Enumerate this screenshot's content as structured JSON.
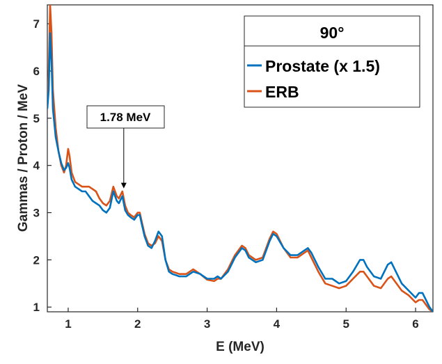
{
  "chart_data": {
    "type": "line",
    "xlabel": "E (MeV)",
    "ylabel": "Gammas / Proton / MeV",
    "xlim": [
      0.7,
      6.25
    ],
    "ylim": [
      0.9,
      7.4
    ],
    "xticks": [
      1,
      2,
      3,
      4,
      5,
      6
    ],
    "yticks": [
      1,
      2,
      3,
      4,
      5,
      6,
      7
    ],
    "grid": false,
    "legend": {
      "title": "90°",
      "placement": "top-right"
    },
    "annotation": {
      "text": "1.78 MeV",
      "x": 1.8,
      "y": 3.5
    },
    "series": [
      {
        "name": "Prostate (x 1.5)",
        "color": "#0072BD",
        "points": [
          [
            0.7,
            5.2
          ],
          [
            0.72,
            5.6
          ],
          [
            0.74,
            6.8
          ],
          [
            0.76,
            6.2
          ],
          [
            0.78,
            5.2
          ],
          [
            0.82,
            4.6
          ],
          [
            0.86,
            4.3
          ],
          [
            0.9,
            4.05
          ],
          [
            0.94,
            3.9
          ],
          [
            0.97,
            3.95
          ],
          [
            1.0,
            4.05
          ],
          [
            1.02,
            3.95
          ],
          [
            1.05,
            3.7
          ],
          [
            1.1,
            3.55
          ],
          [
            1.15,
            3.5
          ],
          [
            1.2,
            3.45
          ],
          [
            1.25,
            3.45
          ],
          [
            1.3,
            3.35
          ],
          [
            1.35,
            3.25
          ],
          [
            1.4,
            3.2
          ],
          [
            1.45,
            3.15
          ],
          [
            1.5,
            3.05
          ],
          [
            1.55,
            3.0
          ],
          [
            1.6,
            3.1
          ],
          [
            1.65,
            3.45
          ],
          [
            1.7,
            3.25
          ],
          [
            1.73,
            3.2
          ],
          [
            1.78,
            3.35
          ],
          [
            1.82,
            3.05
          ],
          [
            1.86,
            2.95
          ],
          [
            1.9,
            2.9
          ],
          [
            1.95,
            2.85
          ],
          [
            2.0,
            2.95
          ],
          [
            2.03,
            2.95
          ],
          [
            2.06,
            2.75
          ],
          [
            2.1,
            2.5
          ],
          [
            2.15,
            2.3
          ],
          [
            2.2,
            2.25
          ],
          [
            2.25,
            2.4
          ],
          [
            2.3,
            2.6
          ],
          [
            2.35,
            2.5
          ],
          [
            2.4,
            2.0
          ],
          [
            2.45,
            1.75
          ],
          [
            2.5,
            1.7
          ],
          [
            2.6,
            1.65
          ],
          [
            2.7,
            1.65
          ],
          [
            2.8,
            1.75
          ],
          [
            2.9,
            1.7
          ],
          [
            3.0,
            1.6
          ],
          [
            3.1,
            1.6
          ],
          [
            3.15,
            1.65
          ],
          [
            3.2,
            1.6
          ],
          [
            3.3,
            1.75
          ],
          [
            3.4,
            2.05
          ],
          [
            3.5,
            2.25
          ],
          [
            3.55,
            2.2
          ],
          [
            3.6,
            2.05
          ],
          [
            3.7,
            1.95
          ],
          [
            3.8,
            2.0
          ],
          [
            3.9,
            2.4
          ],
          [
            3.95,
            2.55
          ],
          [
            4.0,
            2.5
          ],
          [
            4.1,
            2.25
          ],
          [
            4.2,
            2.1
          ],
          [
            4.3,
            2.1
          ],
          [
            4.4,
            2.2
          ],
          [
            4.45,
            2.25
          ],
          [
            4.5,
            2.15
          ],
          [
            4.6,
            1.85
          ],
          [
            4.7,
            1.6
          ],
          [
            4.8,
            1.6
          ],
          [
            4.9,
            1.5
          ],
          [
            5.0,
            1.55
          ],
          [
            5.1,
            1.75
          ],
          [
            5.2,
            2.0
          ],
          [
            5.25,
            2.0
          ],
          [
            5.3,
            1.85
          ],
          [
            5.4,
            1.65
          ],
          [
            5.5,
            1.6
          ],
          [
            5.6,
            1.9
          ],
          [
            5.65,
            1.95
          ],
          [
            5.7,
            1.8
          ],
          [
            5.8,
            1.5
          ],
          [
            5.9,
            1.35
          ],
          [
            6.0,
            1.2
          ],
          [
            6.05,
            1.3
          ],
          [
            6.1,
            1.3
          ],
          [
            6.15,
            1.15
          ],
          [
            6.2,
            1.0
          ],
          [
            6.25,
            0.9
          ]
        ]
      },
      {
        "name": "ERB",
        "color": "#D95319",
        "points": [
          [
            0.7,
            5.3
          ],
          [
            0.72,
            6.0
          ],
          [
            0.74,
            7.4
          ],
          [
            0.76,
            6.8
          ],
          [
            0.78,
            5.6
          ],
          [
            0.82,
            4.8
          ],
          [
            0.86,
            4.3
          ],
          [
            0.9,
            4.0
          ],
          [
            0.94,
            3.85
          ],
          [
            0.97,
            4.0
          ],
          [
            1.0,
            4.35
          ],
          [
            1.02,
            4.2
          ],
          [
            1.05,
            3.85
          ],
          [
            1.1,
            3.65
          ],
          [
            1.15,
            3.6
          ],
          [
            1.2,
            3.55
          ],
          [
            1.25,
            3.55
          ],
          [
            1.3,
            3.55
          ],
          [
            1.35,
            3.5
          ],
          [
            1.4,
            3.45
          ],
          [
            1.45,
            3.3
          ],
          [
            1.5,
            3.2
          ],
          [
            1.55,
            3.15
          ],
          [
            1.6,
            3.25
          ],
          [
            1.65,
            3.55
          ],
          [
            1.7,
            3.35
          ],
          [
            1.73,
            3.3
          ],
          [
            1.78,
            3.45
          ],
          [
            1.82,
            3.15
          ],
          [
            1.86,
            3.0
          ],
          [
            1.9,
            2.95
          ],
          [
            1.95,
            2.9
          ],
          [
            2.0,
            3.0
          ],
          [
            2.03,
            3.0
          ],
          [
            2.06,
            2.8
          ],
          [
            2.1,
            2.55
          ],
          [
            2.15,
            2.35
          ],
          [
            2.2,
            2.3
          ],
          [
            2.25,
            2.35
          ],
          [
            2.3,
            2.5
          ],
          [
            2.35,
            2.4
          ],
          [
            2.4,
            2.0
          ],
          [
            2.45,
            1.8
          ],
          [
            2.5,
            1.75
          ],
          [
            2.6,
            1.7
          ],
          [
            2.7,
            1.7
          ],
          [
            2.8,
            1.8
          ],
          [
            2.9,
            1.7
          ],
          [
            3.0,
            1.58
          ],
          [
            3.1,
            1.55
          ],
          [
            3.15,
            1.6
          ],
          [
            3.2,
            1.6
          ],
          [
            3.3,
            1.8
          ],
          [
            3.4,
            2.1
          ],
          [
            3.5,
            2.3
          ],
          [
            3.55,
            2.25
          ],
          [
            3.6,
            2.1
          ],
          [
            3.7,
            2.0
          ],
          [
            3.8,
            2.05
          ],
          [
            3.9,
            2.45
          ],
          [
            3.95,
            2.6
          ],
          [
            4.0,
            2.55
          ],
          [
            4.1,
            2.25
          ],
          [
            4.2,
            2.05
          ],
          [
            4.3,
            2.05
          ],
          [
            4.4,
            2.15
          ],
          [
            4.45,
            2.2
          ],
          [
            4.5,
            2.05
          ],
          [
            4.6,
            1.75
          ],
          [
            4.7,
            1.5
          ],
          [
            4.8,
            1.45
          ],
          [
            4.9,
            1.4
          ],
          [
            5.0,
            1.45
          ],
          [
            5.1,
            1.6
          ],
          [
            5.2,
            1.75
          ],
          [
            5.25,
            1.75
          ],
          [
            5.3,
            1.65
          ],
          [
            5.4,
            1.45
          ],
          [
            5.5,
            1.4
          ],
          [
            5.6,
            1.6
          ],
          [
            5.65,
            1.65
          ],
          [
            5.7,
            1.55
          ],
          [
            5.8,
            1.35
          ],
          [
            5.9,
            1.25
          ],
          [
            6.0,
            1.1
          ],
          [
            6.05,
            1.15
          ],
          [
            6.1,
            1.15
          ],
          [
            6.15,
            1.05
          ],
          [
            6.2,
            0.95
          ],
          [
            6.25,
            0.9
          ]
        ]
      }
    ]
  }
}
